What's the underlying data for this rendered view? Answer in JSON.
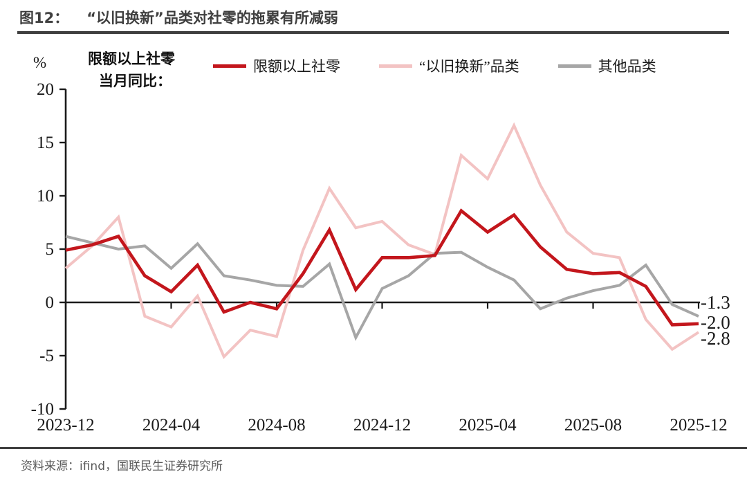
{
  "header": {
    "title_prefix": "图12：",
    "title_text": "“以旧换新”品类对社零的拖累有所减弱"
  },
  "chart_data": {
    "type": "line",
    "unit_label": "%",
    "axis_note_line1": "限额以上社零",
    "axis_note_line2": "当月同比：",
    "grid": false,
    "legend_position": "top",
    "ylim": [
      -10,
      20
    ],
    "yticks": [
      20,
      15,
      10,
      5,
      0,
      -5,
      -10
    ],
    "x": [
      "2023-12",
      "2024-01",
      "2024-02",
      "2024-03",
      "2024-04",
      "2024-05",
      "2024-06",
      "2024-07",
      "2024-08",
      "2024-09",
      "2024-10",
      "2024-11",
      "2024-12",
      "2025-01",
      "2025-02",
      "2025-03",
      "2025-04",
      "2025-05",
      "2025-06",
      "2025-07",
      "2025-08",
      "2025-09",
      "2025-10",
      "2025-11",
      "2025-12"
    ],
    "x_tick_labels": [
      "2023-12",
      "2024-04",
      "2024-08",
      "2024-12",
      "2025-04",
      "2025-08",
      "2025-12"
    ],
    "x_tick_indices": [
      0,
      4,
      8,
      12,
      16,
      20,
      24
    ],
    "series": [
      {
        "name": "限额以上社零",
        "color": "#c3161c",
        "end_label": "-2.0",
        "z": 3,
        "width": 4.6,
        "values": [
          4.9,
          5.4,
          6.2,
          2.5,
          1.0,
          3.5,
          -0.9,
          0.0,
          -0.6,
          2.7,
          6.8,
          1.2,
          4.2,
          4.2,
          4.4,
          8.6,
          6.6,
          8.2,
          5.2,
          3.1,
          2.7,
          2.8,
          1.5,
          -2.1,
          -2.0
        ]
      },
      {
        "name": "“以旧换新”品类",
        "color": "#f3c3c3",
        "end_label": "-2.8",
        "z": 1,
        "width": 4.0,
        "values": [
          3.2,
          5.3,
          8.0,
          -1.3,
          -2.3,
          0.6,
          -5.1,
          -2.6,
          -3.2,
          4.9,
          10.7,
          7.0,
          7.6,
          5.4,
          4.5,
          13.8,
          11.6,
          16.6,
          11.0,
          6.6,
          4.6,
          4.2,
          -1.6,
          -4.4,
          -2.8
        ]
      },
      {
        "name": "其他品类",
        "color": "#a6a6a6",
        "end_label": "-1.3",
        "z": 2,
        "width": 4.0,
        "values": [
          6.2,
          5.6,
          5.0,
          5.3,
          3.2,
          5.5,
          2.5,
          2.1,
          1.6,
          1.5,
          3.6,
          -3.3,
          1.3,
          2.5,
          4.6,
          4.7,
          3.3,
          2.1,
          -0.6,
          0.4,
          1.1,
          1.6,
          3.5,
          -0.2,
          -1.3
        ]
      }
    ]
  },
  "footer": {
    "source": "资料来源：ifind，国联民生证券研究所"
  }
}
